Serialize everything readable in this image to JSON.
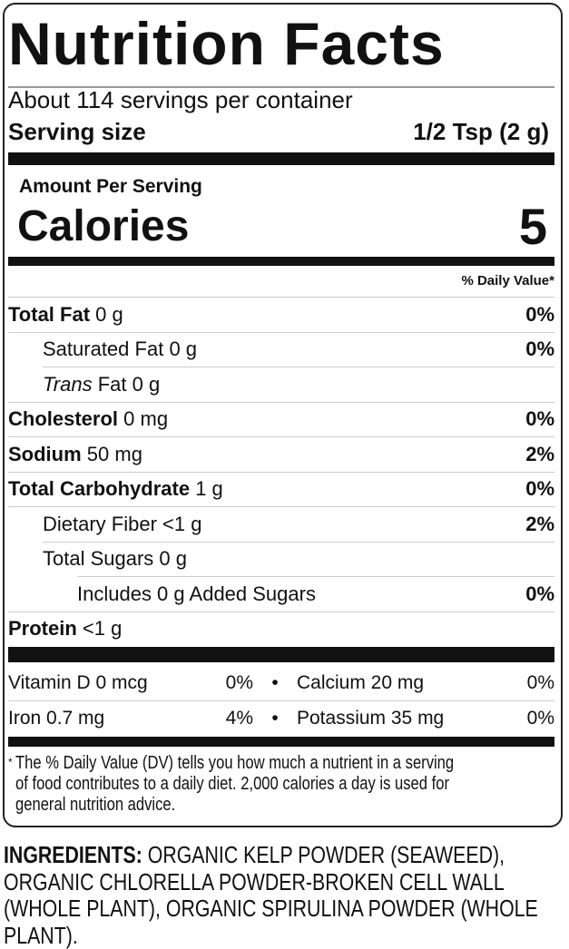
{
  "title": "Nutrition Facts",
  "servings_per_container": "About 114 servings per container",
  "serving_size_label": "Serving size",
  "serving_size_value": "1/2 Tsp (2 g)",
  "amount_per_serving": "Amount Per Serving",
  "calories_label": "Calories",
  "calories_value": "5",
  "dv_header": "% Daily Value*",
  "nutrients": [
    {
      "name": "Total Fat",
      "amount": "0 g",
      "dv": "0%"
    },
    {
      "name": "Saturated Fat",
      "amount": "0 g",
      "dv": "0%"
    },
    {
      "name": "Trans",
      "name_suffix": "Fat",
      "amount": "0 g",
      "dv": ""
    },
    {
      "name": "Cholesterol",
      "amount": "0 mg",
      "dv": "0%"
    },
    {
      "name": "Sodium",
      "amount": "50 mg",
      "dv": "2%"
    },
    {
      "name": "Total Carbohydrate",
      "amount": "1 g",
      "dv": "0%"
    },
    {
      "name": "Dietary Fiber",
      "amount": "<1 g",
      "dv": "2%"
    },
    {
      "name": "Total Sugars",
      "amount": "0 g",
      "dv": ""
    },
    {
      "name": "Includes 0 g Added Sugars",
      "amount": "",
      "dv": "0%"
    },
    {
      "name": "Protein",
      "amount": "<1 g",
      "dv": ""
    }
  ],
  "micros": [
    {
      "left": "Vitamin D 0 mcg",
      "left_dv": "0%",
      "right": "Calcium 20 mg",
      "right_dv": "0%"
    },
    {
      "left": "Iron 0.7 mg",
      "left_dv": "4%",
      "right": "Potassium 35 mg",
      "right_dv": "0%"
    }
  ],
  "footnote_mark": "*",
  "footnote": "The % Daily Value (DV) tells you how much a nutrient in a serving of food contributes to a daily diet. 2,000 calories a day is used for general nutrition advice.",
  "ingredients_label": "INGREDIENTS:",
  "ingredients": "ORGANIC KELP POWDER (SEAWEED), ORGANIC CHLORELLA POWDER-BROKEN CELL WALL (WHOLE PLANT), ORGANIC SPIRULINA POWDER (WHOLE PLANT)."
}
